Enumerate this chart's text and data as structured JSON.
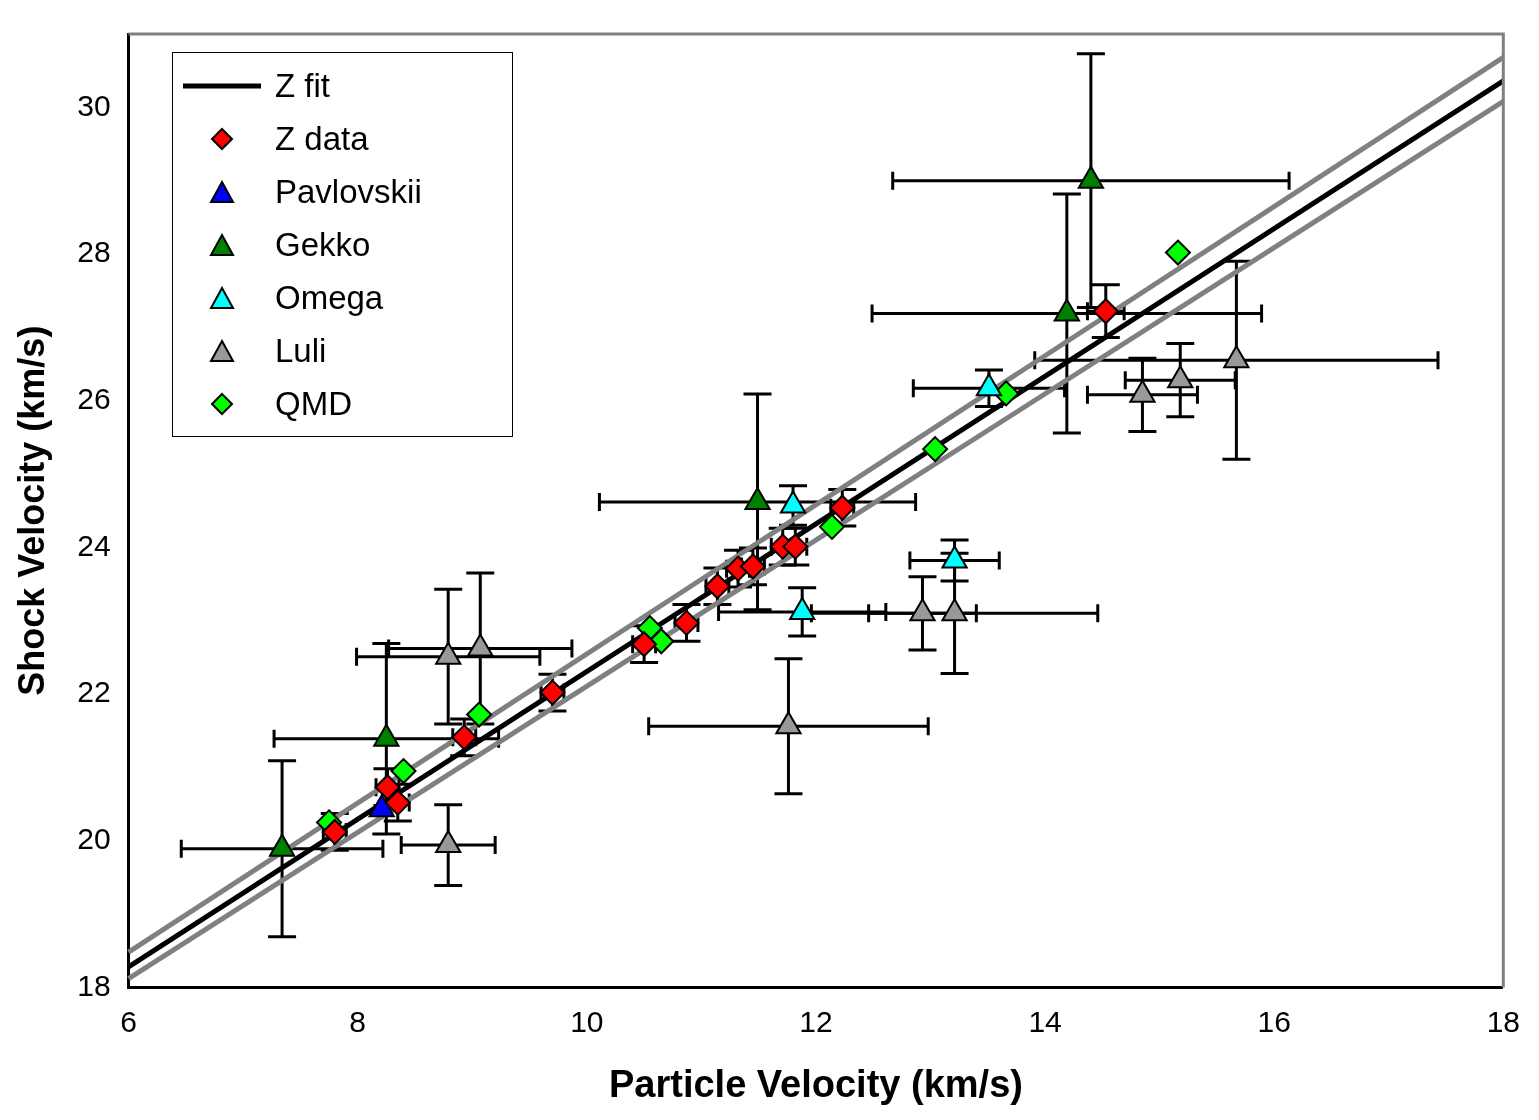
{
  "chart_data": {
    "type": "scatter",
    "xlabel": "Particle Velocity (km/s)",
    "ylabel": "Shock Velocity (km/s)",
    "xlim": [
      6,
      18
    ],
    "ylim": [
      18,
      31
    ],
    "xticks": [
      6,
      8,
      10,
      12,
      14,
      16,
      18
    ],
    "yticks": [
      18,
      20,
      22,
      24,
      26,
      28,
      30
    ],
    "grid": false,
    "legend": "top left",
    "series": [
      {
        "type": "line",
        "color": "#808080",
        "marker": "none",
        "x": [
          6,
          18
        ],
        "values": [
          18.48,
          30.68
        ]
      },
      {
        "type": "line",
        "color": "#808080",
        "marker": "none",
        "x": [
          6,
          18
        ],
        "values": [
          18.12,
          30.08
        ]
      },
      {
        "type": "line",
        "name": "Z fit",
        "color": "#000000",
        "marker": "none",
        "x": [
          6,
          18
        ],
        "values": [
          18.28,
          30.36
        ]
      },
      {
        "type": "scatter",
        "name": "Z data",
        "color": "#ff0000",
        "marker": "diamond",
        "x": [
          7.8,
          8.26,
          8.35,
          8.93,
          9.7,
          10.5,
          10.87,
          11.14,
          11.32,
          11.45,
          11.71,
          11.82,
          12.23,
          14.53
        ],
        "values": [
          20.12,
          20.73,
          20.52,
          21.41,
          22.02,
          22.68,
          22.97,
          23.47,
          23.71,
          23.74,
          24.01,
          24.01,
          24.54,
          27.22
        ],
        "errors": [
          0.25,
          0.25,
          0.25,
          0.25,
          0.25,
          0.25,
          0.25,
          0.25,
          0.25,
          0.25,
          0.25,
          0.25,
          0.25,
          0.36
        ],
        "xerrors": [
          0.1,
          0.1,
          0.1,
          0.1,
          0.1,
          0.1,
          0.1,
          0.1,
          0.1,
          0.1,
          0.1,
          0.1,
          0.1,
          0.16
        ]
      },
      {
        "type": "scatter",
        "name": "Pavlovskii",
        "color": "#0000ff",
        "marker": "triangle",
        "x": [
          8.21
        ],
        "values": [
          20.43
        ]
      },
      {
        "type": "scatter",
        "name": "Gekko",
        "color": "#008000",
        "marker": "triangle",
        "x": [
          7.34,
          8.25,
          11.49,
          14.19,
          14.4
        ],
        "values": [
          19.89,
          21.39,
          24.62,
          27.19,
          29.0
        ],
        "errors": [
          1.2,
          1.3,
          1.47,
          1.63,
          1.73
        ],
        "xerrors": [
          0.88,
          0.98,
          1.38,
          1.7,
          1.73
        ]
      },
      {
        "type": "scatter",
        "name": "Omega",
        "color": "#00ffff",
        "marker": "triangle",
        "x": [
          13.51,
          11.8,
          11.88,
          13.21
        ],
        "values": [
          26.17,
          24.57,
          23.12,
          23.82
        ],
        "errors": [
          0.25,
          0.27,
          0.33,
          0.28
        ],
        "xerrors": [
          0.66,
          null,
          0.73,
          0.39
        ]
      },
      {
        "type": "scatter",
        "name": "Luli",
        "color": "#999999",
        "marker": "triangle",
        "x": [
          8.79,
          8.79,
          9.07,
          11.76,
          12.93,
          13.21,
          14.85,
          15.18,
          15.67
        ],
        "values": [
          19.94,
          22.51,
          22.62,
          21.56,
          23.1,
          23.1,
          26.08,
          26.28,
          26.55
        ],
        "errors": [
          0.55,
          0.92,
          1.03,
          0.92,
          0.5,
          0.82,
          0.5,
          0.5,
          1.35
        ],
        "xerrors": [
          0.41,
          0.8,
          0.8,
          1.22,
          0.47,
          1.25,
          0.48,
          0.48,
          1.76
        ]
      },
      {
        "type": "scatter",
        "name": "QMD",
        "color": "#00ff00",
        "marker": "diamond",
        "x": [
          7.75,
          8.4,
          9.06,
          10.55,
          10.65,
          12.14,
          13.04,
          13.66,
          15.16
        ],
        "values": [
          20.25,
          20.95,
          21.72,
          22.9,
          22.72,
          24.28,
          25.34,
          26.1,
          28.02
        ]
      }
    ]
  }
}
